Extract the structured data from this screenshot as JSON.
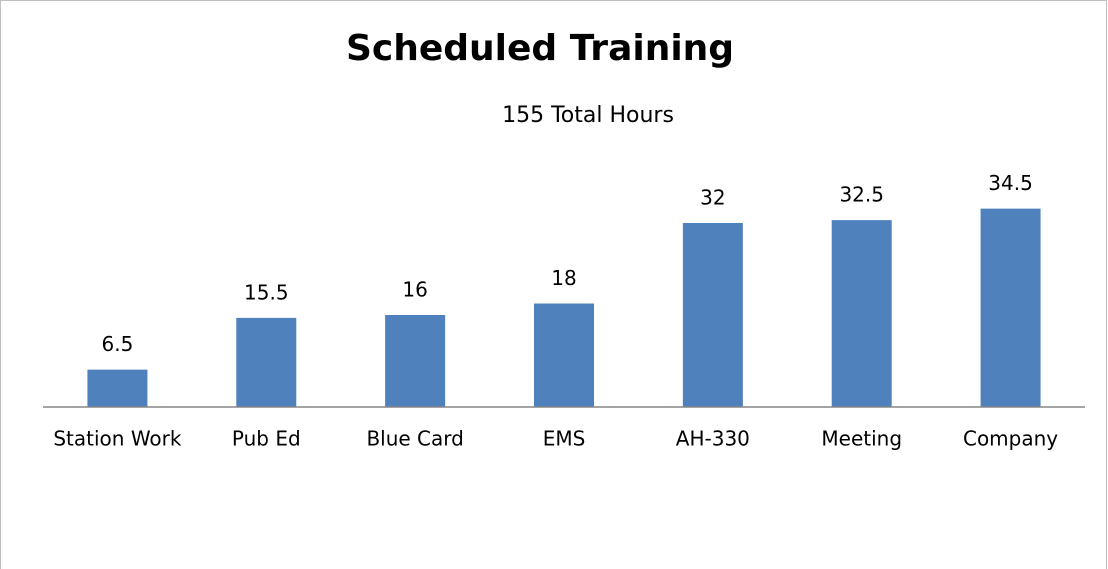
{
  "chart_data": {
    "type": "bar",
    "title": "Scheduled Training",
    "subtitle": "155 Total Hours",
    "categories": [
      "Station Work",
      "Pub Ed",
      "Blue Card",
      "EMS",
      "AH-330",
      "Meeting",
      "Company"
    ],
    "values": [
      6.5,
      15.5,
      16,
      18,
      32,
      32.5,
      34.5
    ],
    "color": "#4f81bd",
    "ylim": [
      0,
      40
    ]
  }
}
